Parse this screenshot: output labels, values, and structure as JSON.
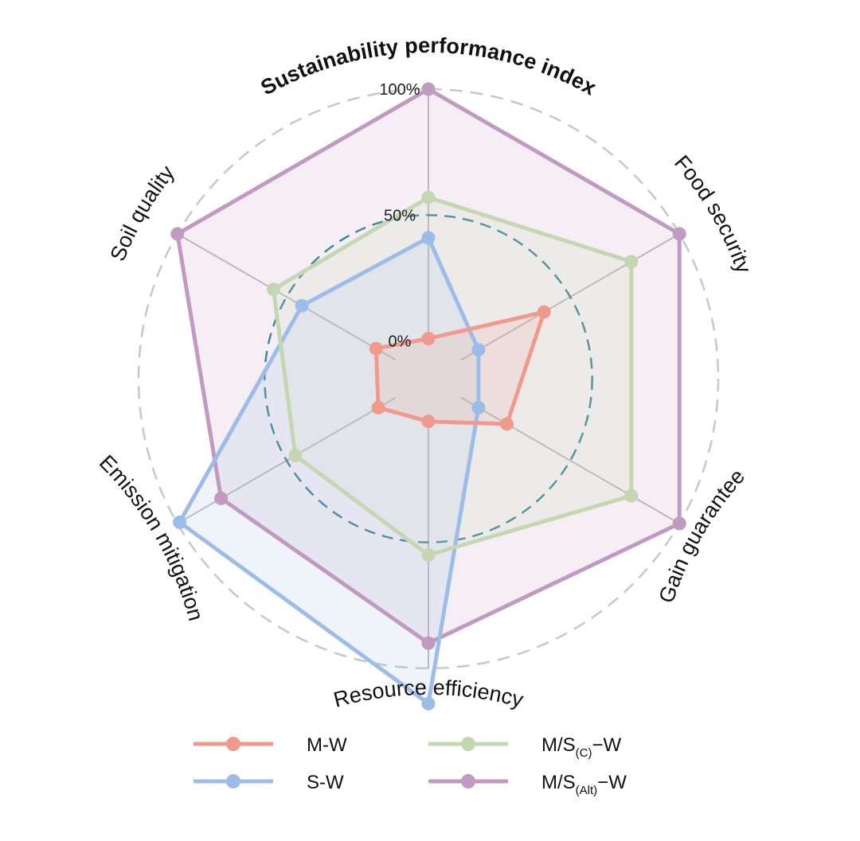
{
  "chart_data": {
    "type": "radar",
    "axes": [
      "Sustainability performance index",
      "Food security",
      "Gain guarantee",
      "Resource efficiency",
      "Emission mitigation",
      "Soil quality"
    ],
    "ring_labels": [
      "0%",
      "50%",
      "100%"
    ],
    "rlim": [
      0,
      100
    ],
    "inner_offset": 0.13,
    "series": [
      {
        "name": "M-W",
        "color": "#f09a8e",
        "values": [
          1,
          38,
          21,
          2,
          8,
          9
        ]
      },
      {
        "name": "S-W",
        "color": "#9dbde8",
        "values": [
          41,
          8,
          8,
          114,
          99,
          43
        ]
      },
      {
        "name": "M/S(C)−W",
        "color": "#c5d7b2",
        "values": [
          57,
          78,
          78,
          55,
          46,
          56
        ]
      },
      {
        "name": "M/S(Alt)−W",
        "color": "#c09ac0",
        "values": [
          100,
          100,
          100,
          90,
          80,
          100
        ]
      }
    ],
    "legend": [
      {
        "base": "M-W",
        "sub": "",
        "tail": ""
      },
      {
        "base": "M/S",
        "sub": "(C)",
        "tail": "−W"
      },
      {
        "base": "S-W",
        "sub": "",
        "tail": ""
      },
      {
        "base": "M/S",
        "sub": "(Alt)",
        "tail": "−W"
      }
    ],
    "legend_placement": "bottom",
    "grid": true,
    "colors": {
      "spoke": "#bdbdbd",
      "outer_ring": "#c8c8c8",
      "mid_ring": "#2a8591",
      "alt_fill": "#c09ac0"
    }
  }
}
